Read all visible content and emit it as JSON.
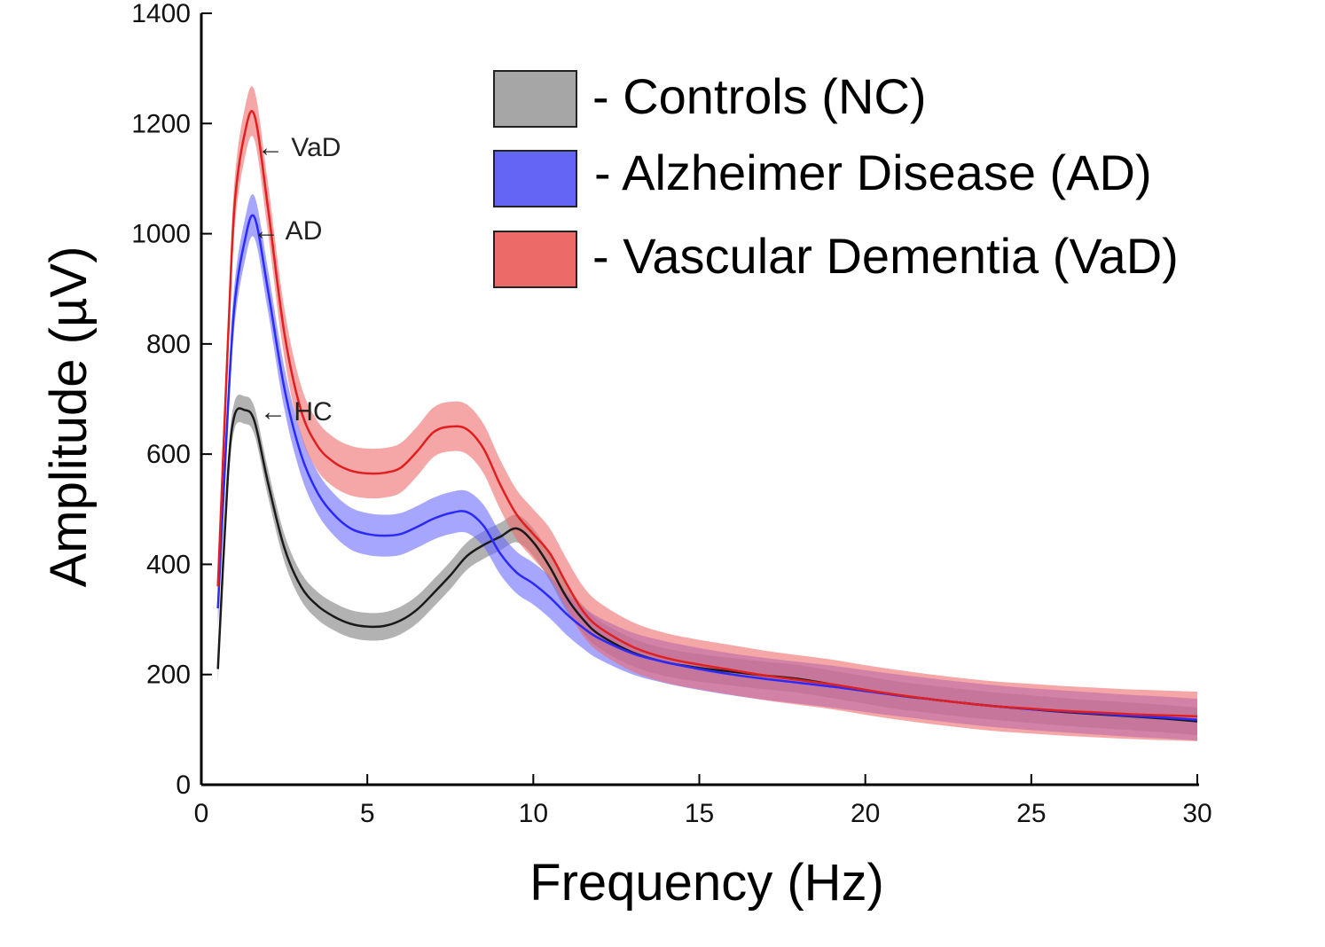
{
  "chart_data": {
    "type": "line",
    "xlabel": "Frequency (Hz)",
    "ylabel": "Amplitude (µV)",
    "xlim": [
      0,
      30
    ],
    "ylim": [
      0,
      1400
    ],
    "xticks": [
      0,
      5,
      10,
      15,
      20,
      25,
      30
    ],
    "yticks": [
      0,
      200,
      400,
      600,
      800,
      1000,
      1200,
      1400
    ],
    "grid": false,
    "legend_position": "top-right",
    "shaded_band": "error band around each series",
    "series": [
      {
        "name": "- Controls (NC)",
        "line_color": "#1a1a1a",
        "band_color": "#7f7f7f",
        "band_opacity": 0.6,
        "x": [
          0.5,
          0.8,
          1.0,
          1.3,
          1.6,
          2.0,
          2.5,
          3.0,
          3.5,
          4.0,
          4.5,
          5.0,
          5.5,
          6.0,
          6.5,
          7.0,
          7.5,
          8.0,
          8.5,
          9.0,
          9.5,
          10.0,
          10.5,
          11.0,
          11.5,
          12.0,
          13.0,
          14.0,
          15.0,
          16.0,
          17.0,
          18.0,
          19.0,
          20.0,
          21.0,
          22.0,
          23.0,
          24.0,
          25.0,
          26.0,
          27.0,
          28.0,
          29.0,
          30.0
        ],
        "y": [
          210,
          560,
          670,
          680,
          660,
          550,
          430,
          360,
          325,
          305,
          292,
          287,
          288,
          298,
          318,
          348,
          380,
          415,
          435,
          450,
          465,
          440,
          395,
          340,
          300,
          272,
          240,
          222,
          212,
          205,
          198,
          192,
          182,
          172,
          162,
          155,
          148,
          142,
          137,
          132,
          128,
          124,
          120,
          115
        ],
        "band": 25
      },
      {
        "name": "- Alzheimer Disease (AD)",
        "line_color": "#2a2aff",
        "band_color": "#6a6aff",
        "band_opacity": 0.6,
        "x": [
          0.5,
          0.8,
          1.0,
          1.3,
          1.6,
          2.0,
          2.5,
          3.0,
          3.5,
          4.0,
          4.5,
          5.0,
          5.5,
          6.0,
          6.5,
          7.0,
          7.5,
          8.0,
          8.5,
          9.0,
          9.5,
          10.0,
          10.5,
          11.0,
          11.5,
          12.0,
          13.0,
          14.0,
          15.0,
          16.0,
          17.0,
          18.0,
          19.0,
          20.0,
          21.0,
          22.0,
          23.0,
          24.0,
          25.0,
          26.0,
          27.0,
          28.0,
          29.0,
          30.0
        ],
        "y": [
          320,
          680,
          870,
          985,
          1030,
          900,
          720,
          600,
          530,
          490,
          465,
          455,
          452,
          455,
          468,
          483,
          493,
          495,
          470,
          420,
          385,
          365,
          340,
          310,
          285,
          265,
          238,
          222,
          210,
          200,
          192,
          185,
          178,
          170,
          162,
          155,
          148,
          142,
          137,
          133,
          129,
          125,
          122,
          118
        ],
        "band": 38
      },
      {
        "name": "- Vascular Dementia (VaD)",
        "line_color": "#e02020",
        "band_color": "#ee6a6a",
        "band_opacity": 0.6,
        "x": [
          0.5,
          0.8,
          1.0,
          1.3,
          1.6,
          2.0,
          2.5,
          3.0,
          3.5,
          4.0,
          4.5,
          5.0,
          5.5,
          6.0,
          6.5,
          7.0,
          7.5,
          8.0,
          8.5,
          9.0,
          9.5,
          10.0,
          10.5,
          11.0,
          11.5,
          12.0,
          13.0,
          14.0,
          15.0,
          16.0,
          17.0,
          18.0,
          19.0,
          20.0,
          21.0,
          22.0,
          23.0,
          24.0,
          25.0,
          26.0,
          27.0,
          28.0,
          29.0,
          30.0
        ],
        "y": [
          360,
          800,
          1050,
          1180,
          1215,
          1050,
          820,
          680,
          615,
          585,
          570,
          565,
          566,
          575,
          605,
          640,
          650,
          645,
          610,
          545,
          490,
          455,
          420,
          365,
          315,
          285,
          250,
          230,
          218,
          208,
          198,
          190,
          182,
          172,
          163,
          155,
          148,
          142,
          138,
          134,
          131,
          128,
          126,
          124
        ],
        "band": 45
      }
    ],
    "annotations": [
      {
        "text": "← VaD",
        "x": 1.6,
        "y": 1215
      },
      {
        "text": "← AD",
        "x": 1.6,
        "y": 1030
      },
      {
        "text": "← HC",
        "x": 1.6,
        "y": 680
      }
    ]
  }
}
